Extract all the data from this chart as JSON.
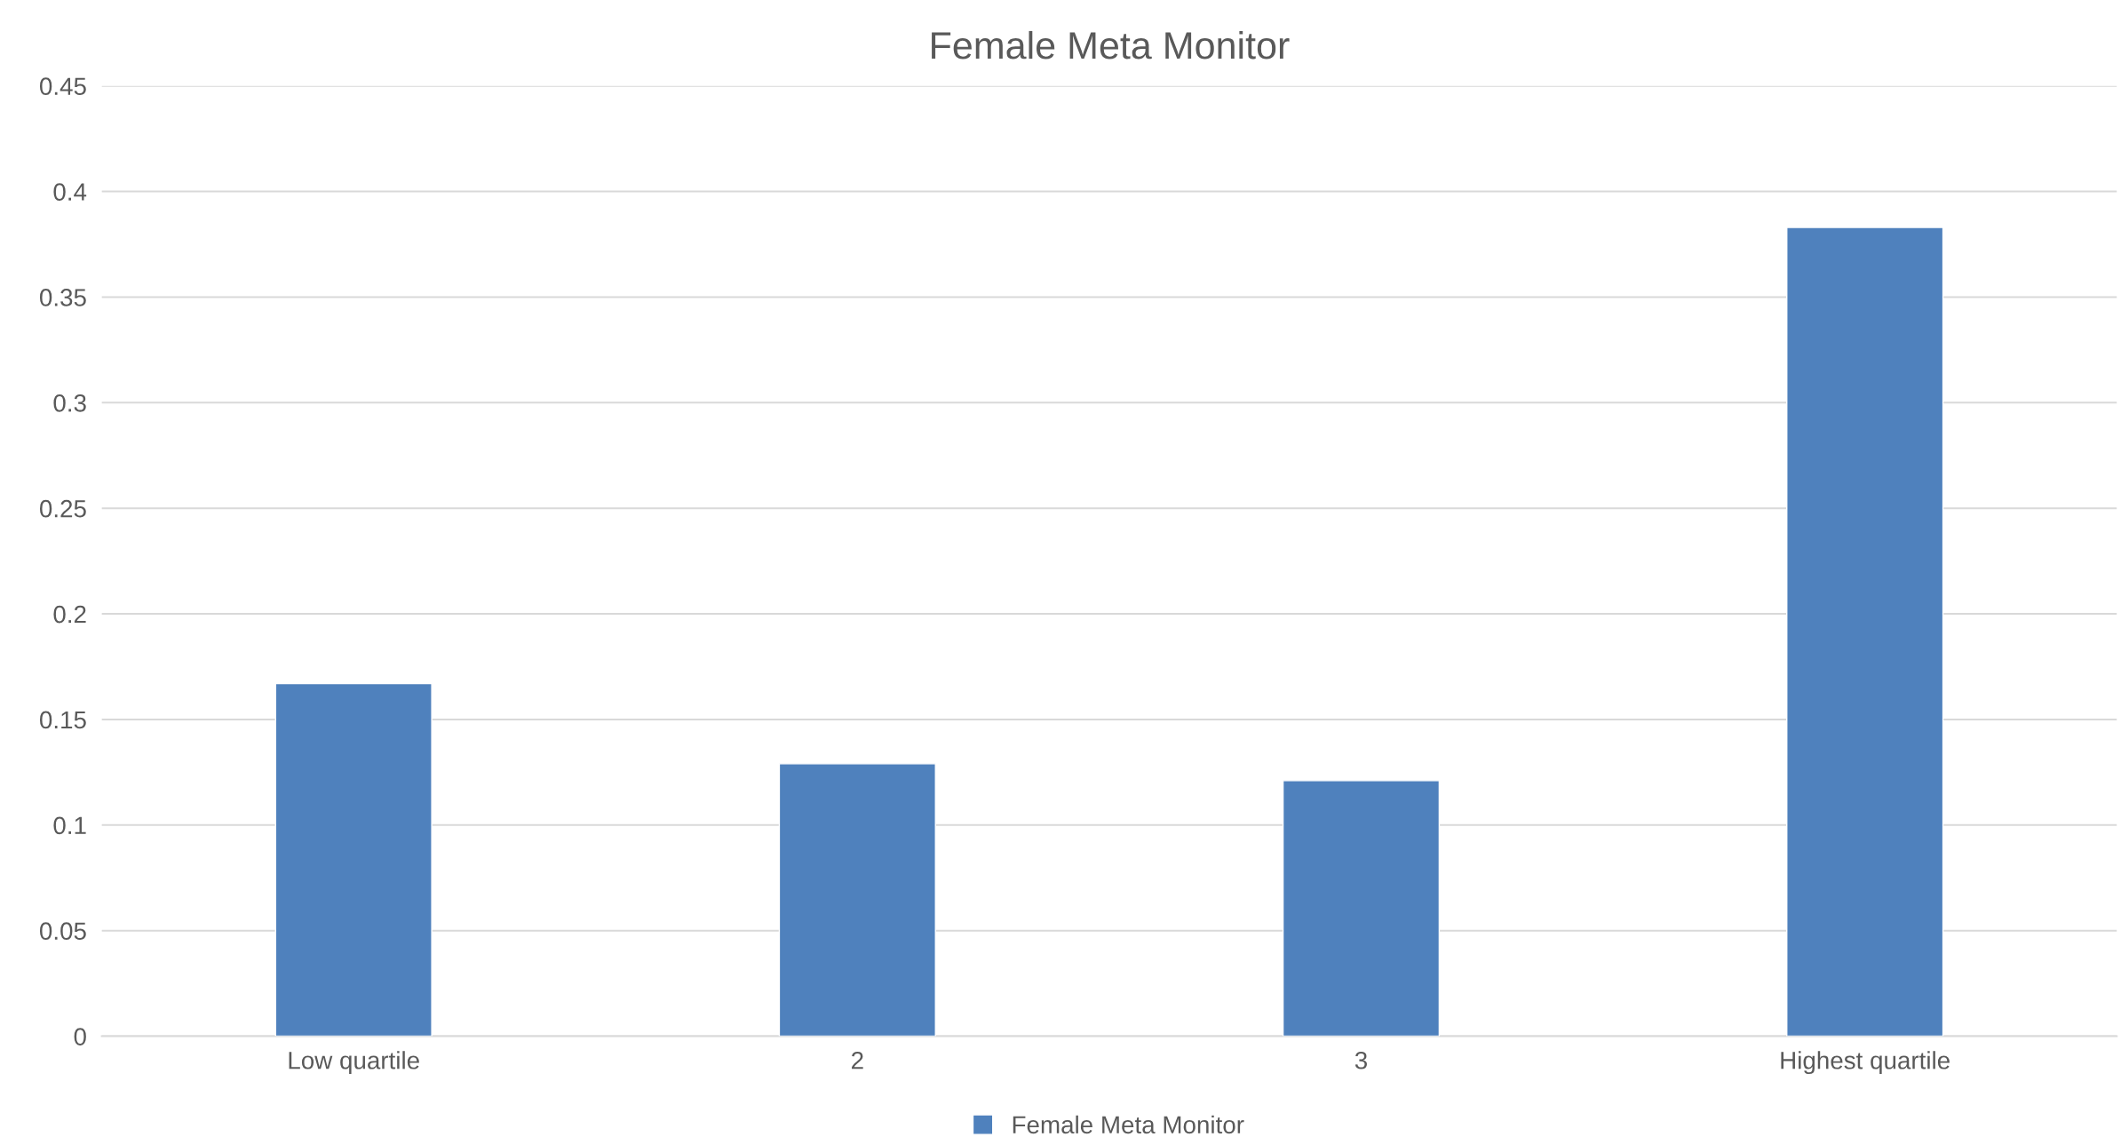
{
  "chart_data": {
    "type": "bar",
    "title": "Female Meta Monitor",
    "categories": [
      "Low quartile",
      "2",
      "3",
      "Highest quartile"
    ],
    "series": [
      {
        "name": "Female Meta Monitor",
        "color": "#4f81bd",
        "values": [
          0.167,
          0.129,
          0.121,
          0.383
        ]
      }
    ],
    "ylim": [
      0,
      0.45
    ],
    "yticks": [
      0,
      0.05,
      0.1,
      0.15,
      0.2,
      0.25,
      0.3,
      0.35,
      0.4,
      0.45
    ],
    "grid": "y",
    "legend": "bottom"
  }
}
